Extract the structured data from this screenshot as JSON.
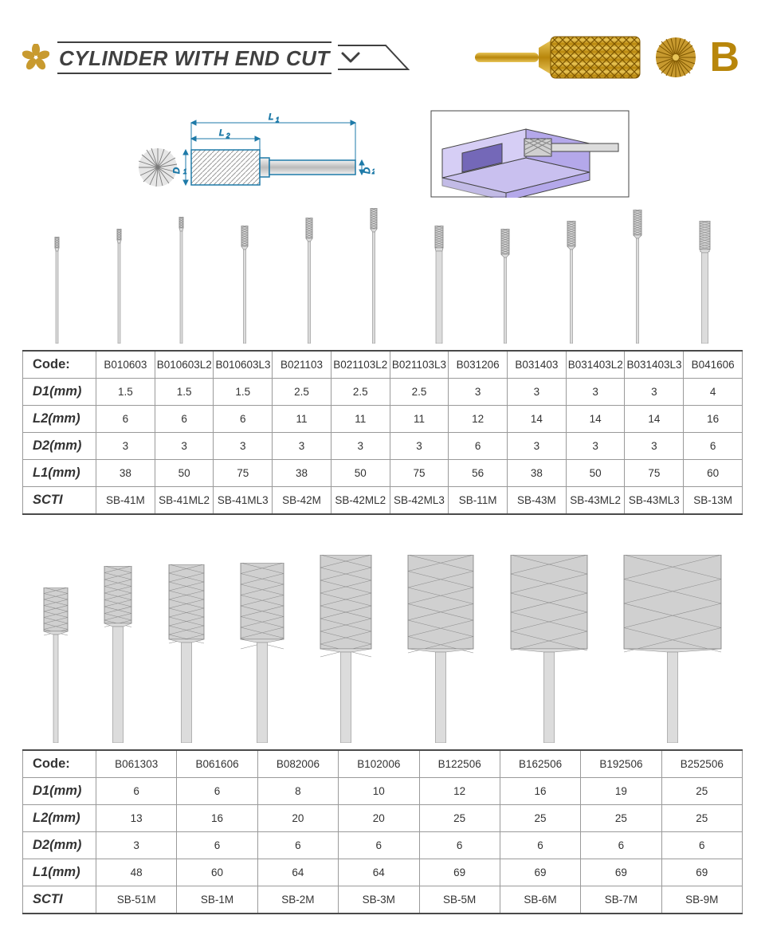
{
  "header": {
    "title": "CYLINDER WITH END CUT",
    "type_letter": "B",
    "gold_color": "#c89a2f",
    "title_color": "#404040"
  },
  "tech_drawing": {
    "labels": {
      "D1": "D₁",
      "D2": "D₂",
      "L1": "L₁",
      "L2": "L₂"
    },
    "outline_color": "#1e7aa8",
    "dim_color": "#1e7aa8",
    "hatch_color": "#b0b0b0"
  },
  "iso_drawing": {
    "block_color": "#8a76d6",
    "block_shadow": "#6b5bb0",
    "tool_color": "#c0c0c0",
    "outline": "#444444"
  },
  "row_labels": {
    "code": "Code:",
    "d1": "D1(mm)",
    "l2": "L2(mm)",
    "d2": "D2(mm)",
    "l1": "L1(mm)",
    "scti": "SCTI"
  },
  "table1": {
    "columns": [
      "B010603",
      "B010603L2",
      "B010603L3",
      "B021103",
      "B021103L2",
      "B021103L3",
      "B031206",
      "B031403",
      "B031403L2",
      "B031403L3",
      "B041606"
    ],
    "d1": [
      "1.5",
      "1.5",
      "1.5",
      "2.5",
      "2.5",
      "2.5",
      "3",
      "3",
      "3",
      "3",
      "4"
    ],
    "l2": [
      "6",
      "6",
      "6",
      "11",
      "11",
      "11",
      "12",
      "14",
      "14",
      "14",
      "16"
    ],
    "d2": [
      "3",
      "3",
      "3",
      "3",
      "3",
      "3",
      "6",
      "3",
      "3",
      "3",
      "6"
    ],
    "l1": [
      "38",
      "50",
      "75",
      "38",
      "50",
      "75",
      "56",
      "38",
      "50",
      "75",
      "60"
    ],
    "scti": [
      "SB-41M",
      "SB-41ML2",
      "SB-41ML3",
      "SB-42M",
      "SB-42ML2",
      "SB-42ML3",
      "SB-11M",
      "SB-43M",
      "SB-43ML2",
      "SB-43ML3",
      "SB-13M"
    ],
    "burrs": [
      {
        "head_w": 5,
        "head_h": 14,
        "shank_w": 3,
        "shank_h": 120
      },
      {
        "head_w": 5,
        "head_h": 14,
        "shank_w": 3,
        "shank_h": 130
      },
      {
        "head_w": 5,
        "head_h": 14,
        "shank_w": 3,
        "shank_h": 145
      },
      {
        "head_w": 8,
        "head_h": 26,
        "shank_w": 3,
        "shank_h": 122
      },
      {
        "head_w": 8,
        "head_h": 26,
        "shank_w": 3,
        "shank_h": 132
      },
      {
        "head_w": 8,
        "head_h": 26,
        "shank_w": 3,
        "shank_h": 144
      },
      {
        "head_w": 10,
        "head_h": 28,
        "shank_w": 8,
        "shank_h": 120
      },
      {
        "head_w": 10,
        "head_h": 32,
        "shank_w": 3,
        "shank_h": 112
      },
      {
        "head_w": 10,
        "head_h": 32,
        "shank_w": 3,
        "shank_h": 122
      },
      {
        "head_w": 10,
        "head_h": 32,
        "shank_w": 3,
        "shank_h": 136
      },
      {
        "head_w": 13,
        "head_h": 36,
        "shank_w": 8,
        "shank_h": 118
      }
    ]
  },
  "table2": {
    "columns": [
      "B061303",
      "B061606",
      "B082006",
      "B102006",
      "B122506",
      "B162506",
      "B192506",
      "B252506"
    ],
    "d1": [
      "6",
      "6",
      "8",
      "10",
      "12",
      "16",
      "19",
      "25"
    ],
    "l2": [
      "13",
      "16",
      "20",
      "20",
      "25",
      "25",
      "25",
      "25"
    ],
    "d2": [
      "3",
      "6",
      "6",
      "6",
      "6",
      "6",
      "6",
      "6"
    ],
    "l1": [
      "48",
      "60",
      "64",
      "64",
      "69",
      "69",
      "69",
      "69"
    ],
    "scti": [
      "SB-51M",
      "SB-1M",
      "SB-2M",
      "SB-3M",
      "SB-5M",
      "SB-6M",
      "SB-7M",
      "SB-9M"
    ],
    "burrs": [
      {
        "head_w": 30,
        "head_h": 55,
        "shank_w": 6,
        "shank_h": 140
      },
      {
        "head_w": 34,
        "head_h": 72,
        "shank_w": 13,
        "shank_h": 150
      },
      {
        "head_w": 44,
        "head_h": 94,
        "shank_w": 13,
        "shank_h": 130
      },
      {
        "head_w": 54,
        "head_h": 96,
        "shank_w": 13,
        "shank_h": 130
      },
      {
        "head_w": 64,
        "head_h": 118,
        "shank_w": 13,
        "shank_h": 118
      },
      {
        "head_w": 82,
        "head_h": 118,
        "shank_w": 13,
        "shank_h": 118
      },
      {
        "head_w": 96,
        "head_h": 118,
        "shank_w": 13,
        "shank_h": 118
      },
      {
        "head_w": 122,
        "head_h": 118,
        "shank_w": 13,
        "shank_h": 118
      }
    ]
  },
  "burr_render": {
    "head_fill": "#d0d0d0",
    "head_stroke": "#7a7a7a",
    "hatch_stroke": "#8a8a8a",
    "shank_fill": "#dcdcdc",
    "shank_stroke": "#8a8a8a"
  }
}
